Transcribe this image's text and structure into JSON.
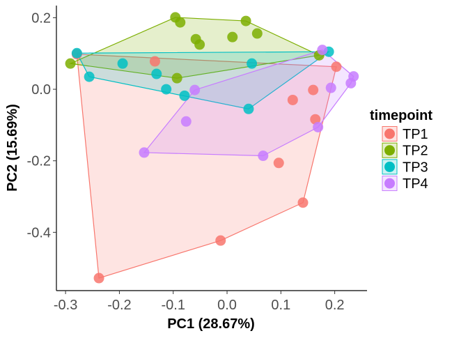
{
  "chart_data": {
    "type": "scatter",
    "title": "",
    "xlabel": "PC1 (28.67%)",
    "ylabel": "PC2 (15.69%)",
    "xlim": [
      -0.317,
      0.26
    ],
    "ylim": [
      -0.563,
      0.234
    ],
    "xticks": [
      -0.3,
      -0.2,
      -0.1,
      0.0,
      0.1,
      0.2
    ],
    "xtick_labels": [
      "-0.3",
      "-0.2",
      "-0.1",
      "0.0",
      "0.1",
      "0.2"
    ],
    "yticks": [
      0.2,
      0.0,
      -0.2,
      -0.4
    ],
    "ytick_labels": [
      "0.2",
      "0.0",
      "-0.2",
      "-0.4"
    ],
    "grid": false,
    "hulls": true,
    "legend": {
      "title": "timepoint",
      "placement": "right"
    },
    "series": [
      {
        "name": "TP1",
        "color": "#F8766D",
        "points": [
          [
            -0.279,
            0.098
          ],
          [
            -0.134,
            0.078
          ],
          [
            0.203,
            0.063
          ],
          [
            0.16,
            -0.002
          ],
          [
            0.122,
            -0.03
          ],
          [
            0.164,
            -0.084
          ],
          [
            0.096,
            -0.206
          ],
          [
            0.141,
            -0.317
          ],
          [
            -0.012,
            -0.423
          ],
          [
            -0.238,
            -0.528
          ]
        ]
      },
      {
        "name": "TP2",
        "color": "#7CAE00",
        "points": [
          [
            -0.291,
            0.072
          ],
          [
            -0.096,
            0.201
          ],
          [
            -0.087,
            0.187
          ],
          [
            0.035,
            0.191
          ],
          [
            0.056,
            0.156
          ],
          [
            0.01,
            0.146
          ],
          [
            -0.058,
            0.14
          ],
          [
            -0.051,
            0.125
          ],
          [
            -0.093,
            0.031
          ],
          [
            0.171,
            0.095
          ]
        ]
      },
      {
        "name": "TP3",
        "color": "#00BFC4",
        "points": [
          [
            -0.279,
            0.101
          ],
          [
            -0.256,
            0.035
          ],
          [
            -0.194,
            0.072
          ],
          [
            -0.131,
            0.043
          ],
          [
            -0.113,
            0.0
          ],
          [
            -0.079,
            -0.018
          ],
          [
            0.04,
            -0.055
          ],
          [
            0.046,
            0.072
          ],
          [
            0.189,
            0.105
          ]
        ]
      },
      {
        "name": "TP4",
        "color": "#C77CFF",
        "points": [
          [
            -0.06,
            -0.002
          ],
          [
            -0.076,
            -0.09
          ],
          [
            -0.154,
            -0.177
          ],
          [
            0.067,
            -0.186
          ],
          [
            0.169,
            -0.106
          ],
          [
            0.193,
            0.004
          ],
          [
            0.235,
            0.036
          ],
          [
            0.23,
            0.017
          ],
          [
            0.177,
            0.11
          ]
        ]
      }
    ]
  }
}
